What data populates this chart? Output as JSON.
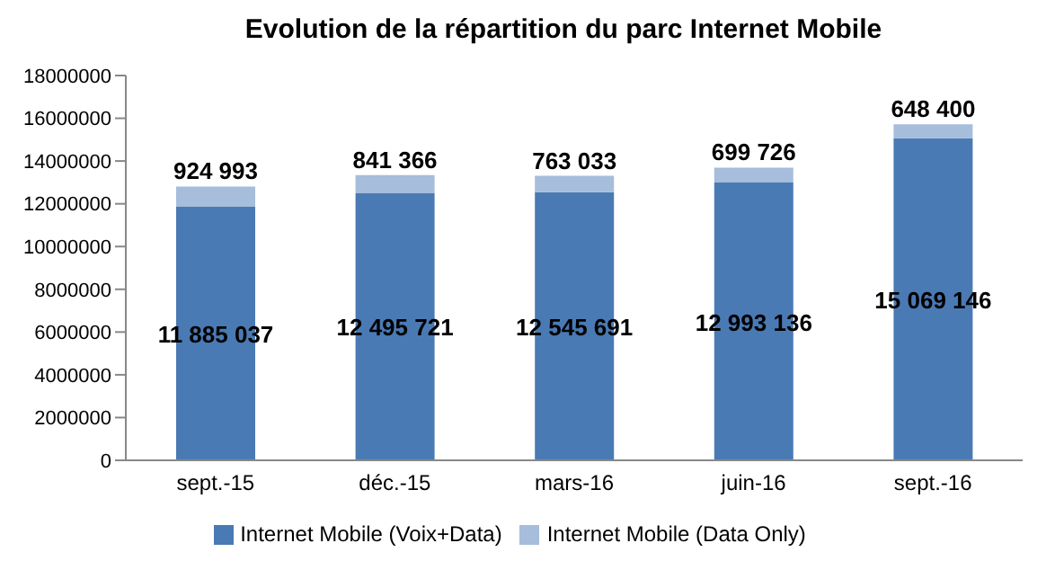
{
  "chart_data": {
    "type": "bar",
    "title": "Evolution de la répartition du parc Internet Mobile",
    "categories": [
      "sept.-15",
      "déc.-15",
      "mars-16",
      "juin-16",
      "sept.-16"
    ],
    "stacked": true,
    "series": [
      {
        "name": "Internet Mobile (Voix+Data)",
        "color": "#4a7ab4",
        "values": [
          11885037,
          12495721,
          12545691,
          12993136,
          15069146
        ],
        "value_labels": [
          "11 885 037",
          "12 495 721",
          "12 545 691",
          "12 993 136",
          "15 069 146"
        ]
      },
      {
        "name": "Internet Mobile (Data Only)",
        "color": "#a6bddb",
        "values": [
          924993,
          841366,
          763033,
          699726,
          648400
        ],
        "value_labels": [
          "924 993",
          "841 366",
          "763 033",
          "699 726",
          "648 400"
        ]
      }
    ],
    "ylim": [
      0,
      18000000
    ],
    "yticks": [
      0,
      2000000,
      4000000,
      6000000,
      8000000,
      10000000,
      12000000,
      14000000,
      16000000,
      18000000
    ],
    "grid": false,
    "legend": "bottom"
  }
}
